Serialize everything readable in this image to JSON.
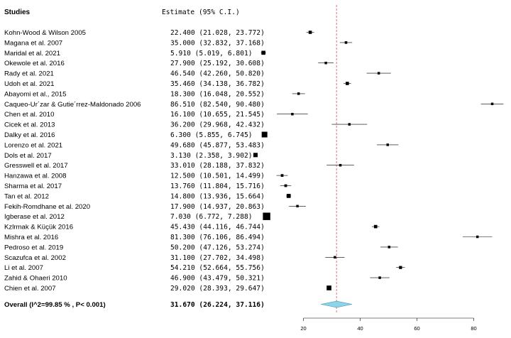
{
  "chart_data": {
    "type": "forest",
    "headers": {
      "studies": "Studies",
      "estimate": "Estimate (95% C.I.)"
    },
    "studies": [
      {
        "name": "Kohn-Wood & Wilson 2005",
        "estimate": 22.4,
        "ci": [
          21.028,
          23.772
        ],
        "text": "22.400 (21.028, 23.772)"
      },
      {
        "name": "Magana et al. 2007",
        "estimate": 35.0,
        "ci": [
          32.832,
          37.168
        ],
        "text": "35.000 (32.832, 37.168)"
      },
      {
        "name": "Maridal et al. 2021",
        "estimate": 5.91,
        "ci": [
          5.019,
          6.801
        ],
        "text": " 5.910 (5.019, 6.801)"
      },
      {
        "name": "Okewole et al. 2016",
        "estimate": 27.9,
        "ci": [
          25.192,
          30.608
        ],
        "text": "27.900 (25.192, 30.608)"
      },
      {
        "name": "Rady et al. 2021",
        "estimate": 46.54,
        "ci": [
          42.26,
          50.82
        ],
        "text": "46.540 (42.260, 50.820)"
      },
      {
        "name": "Udoh et al. 2021",
        "estimate": 35.46,
        "ci": [
          34.138,
          36.782
        ],
        "text": "35.460 (34.138, 36.782)"
      },
      {
        "name": "Abayomi et al., 2015",
        "estimate": 18.3,
        "ci": [
          16.048,
          20.552
        ],
        "text": "18.300 (16.048, 20.552)"
      },
      {
        "name": "Caqueo-Ur´zar & Gutie´rrez-Maldonado 2006",
        "estimate": 86.51,
        "ci": [
          82.54,
          90.48
        ],
        "text": "86.510 (82.540, 90.480)"
      },
      {
        "name": "Chen et al. 2010",
        "estimate": 16.1,
        "ci": [
          10.655,
          21.545
        ],
        "text": "16.100 (10.655, 21.545)"
      },
      {
        "name": "Cicek et al. 2013",
        "estimate": 36.2,
        "ci": [
          29.968,
          42.432
        ],
        "text": "36.200 (29.968, 42.432)"
      },
      {
        "name": "Dalky et al. 2016",
        "estimate": 6.3,
        "ci": [
          5.855,
          6.745
        ],
        "text": " 6.300 (5.855, 6.745)"
      },
      {
        "name": "Lorenzo et al. 2021",
        "estimate": 49.68,
        "ci": [
          45.877,
          53.483
        ],
        "text": "49.680 (45.877, 53.483)"
      },
      {
        "name": "Dols et al. 2017",
        "estimate": 3.13,
        "ci": [
          2.358,
          3.902
        ],
        "text": " 3.130 (2.358, 3.902)"
      },
      {
        "name": "Gresswell et al. 2017",
        "estimate": 33.01,
        "ci": [
          28.188,
          37.832
        ],
        "text": "33.010 (28.188, 37.832)"
      },
      {
        "name": "Hanzawa et al. 2008",
        "estimate": 12.5,
        "ci": [
          10.501,
          14.499
        ],
        "text": "12.500 (10.501, 14.499)"
      },
      {
        "name": "Sharma et al. 2017",
        "estimate": 13.76,
        "ci": [
          11.804,
          15.716
        ],
        "text": "13.760 (11.804, 15.716)"
      },
      {
        "name": "Tan et al. 2012",
        "estimate": 14.8,
        "ci": [
          13.936,
          15.664
        ],
        "text": "14.800 (13.936, 15.664)"
      },
      {
        "name": "Fekih-Romdhane et al. 2020",
        "estimate": 17.9,
        "ci": [
          14.937,
          20.863
        ],
        "text": "17.900 (14.937, 20.863)"
      },
      {
        "name": "Igberase et al.  2012",
        "estimate": 7.03,
        "ci": [
          6.772,
          7.288
        ],
        "text": " 7.030 (6.772, 7.288)"
      },
      {
        "name": "Kzlrmak & Küçük  2016",
        "estimate": 45.43,
        "ci": [
          44.116,
          46.744
        ],
        "text": "45.430 (44.116, 46.744)"
      },
      {
        "name": "Mishra et al. 2016",
        "estimate": 81.3,
        "ci": [
          76.106,
          86.494
        ],
        "text": "81.300 (76.106, 86.494)"
      },
      {
        "name": "Pedroso et al. 2019",
        "estimate": 50.2,
        "ci": [
          47.126,
          53.274
        ],
        "text": "50.200 (47.126, 53.274)"
      },
      {
        "name": "Scazufca et al. 2002",
        "estimate": 31.1,
        "ci": [
          27.702,
          34.498
        ],
        "text": "31.100 (27.702, 34.498)"
      },
      {
        "name": "Li et al. 2007",
        "estimate": 54.21,
        "ci": [
          52.664,
          55.756
        ],
        "text": "54.210 (52.664, 55.756)"
      },
      {
        "name": "Zahid  & Ohaeri 2010",
        "estimate": 46.9,
        "ci": [
          43.479,
          50.321
        ],
        "text": "46.900 (43.479, 50.321)"
      },
      {
        "name": "Chien et al. 2007",
        "estimate": 29.02,
        "ci": [
          28.393,
          29.647
        ],
        "text": "29.020 (28.393, 29.647)"
      }
    ],
    "overall": {
      "name": "Overall (I^2=99.85 % , P< 0.001)",
      "estimate": 31.67,
      "ci": [
        26.224,
        37.116
      ],
      "text": "31.670 (26.224, 37.116)"
    },
    "reference_line": 31.67,
    "xlim": [
      0,
      90
    ],
    "xticks": [
      20,
      40,
      60,
      80
    ],
    "colors": {
      "reference_line": "#d9534f",
      "diamond": "#8fd3e8",
      "marker": "#000000"
    }
  }
}
